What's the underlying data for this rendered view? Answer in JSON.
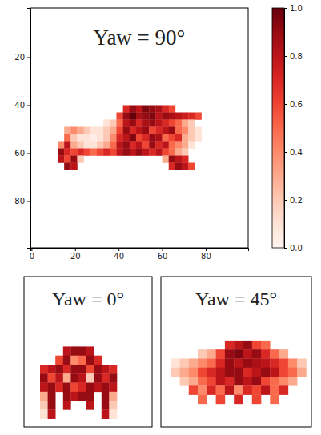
{
  "chart_data": [
    {
      "type": "heatmap",
      "title": "Yaw = 90°",
      "xlim": [
        -0.5,
        99.5
      ],
      "ylim": [
        99.5,
        -0.5
      ],
      "xticks": [
        0,
        20,
        40,
        60,
        80
      ],
      "yticks": [
        20,
        40,
        60,
        80
      ],
      "x_edges": [
        12,
        15,
        18,
        21,
        24,
        27,
        30,
        33,
        36,
        39,
        42,
        45,
        48,
        51,
        54,
        57,
        60,
        63,
        66,
        69,
        72,
        75,
        78,
        81
      ],
      "y_edges": [
        40,
        43,
        46,
        49,
        52,
        55,
        58,
        61,
        64,
        67
      ],
      "values": [
        [
          null,
          null,
          null,
          null,
          null,
          null,
          null,
          null,
          null,
          null,
          0.7,
          0.9,
          0.8,
          0.95,
          0.9,
          0.85,
          0.7,
          0.6,
          null,
          null,
          null,
          null,
          null
        ],
        [
          null,
          null,
          null,
          null,
          null,
          null,
          null,
          null,
          null,
          0.6,
          0.9,
          1.0,
          0.85,
          0.9,
          0.95,
          0.8,
          0.9,
          0.85,
          0.8,
          0.75,
          0.7,
          0.6,
          null
        ],
        [
          null,
          null,
          null,
          null,
          null,
          null,
          null,
          0.1,
          0.2,
          0.5,
          0.8,
          0.9,
          0.7,
          0.85,
          0.9,
          0.8,
          0.7,
          0.6,
          0.5,
          0.3,
          0.2,
          null,
          null
        ],
        [
          null,
          0.3,
          0.4,
          0.3,
          0.2,
          0.1,
          0.1,
          0.2,
          0.3,
          0.6,
          0.9,
          0.7,
          0.8,
          0.9,
          0.6,
          0.7,
          0.8,
          0.9,
          0.5,
          0.4,
          0.2,
          0.1,
          null
        ],
        [
          null,
          0.5,
          0.2,
          0.1,
          0.1,
          0.05,
          0.1,
          0.2,
          0.4,
          0.7,
          0.8,
          0.95,
          0.6,
          0.7,
          0.9,
          0.85,
          0.5,
          0.6,
          0.7,
          0.3,
          0.2,
          0.1,
          null
        ],
        [
          0.4,
          0.8,
          0.3,
          0.2,
          0.1,
          0.1,
          0.2,
          0.3,
          0.5,
          0.8,
          0.9,
          0.7,
          0.8,
          0.6,
          0.9,
          0.7,
          0.8,
          0.5,
          0.4,
          0.3,
          0.1,
          null,
          null
        ],
        [
          0.9,
          0.7,
          0.6,
          0.7,
          0.6,
          0.5,
          0.6,
          0.7,
          0.6,
          0.8,
          0.9,
          0.8,
          0.9,
          0.8,
          0.7,
          0.8,
          0.6,
          0.5,
          0.3,
          0.2,
          null,
          null,
          null
        ],
        [
          0.8,
          0.6,
          0.9,
          0.2,
          null,
          null,
          null,
          null,
          null,
          null,
          null,
          null,
          null,
          null,
          null,
          null,
          0.3,
          0.9,
          0.8,
          0.7,
          null,
          null,
          null
        ],
        [
          null,
          0.9,
          0.8,
          null,
          null,
          null,
          null,
          null,
          null,
          null,
          null,
          null,
          null,
          null,
          null,
          null,
          null,
          0.7,
          0.9,
          0.8,
          0.6,
          null,
          null
        ]
      ],
      "colorbar": {
        "range": [
          0,
          1
        ],
        "ticks": [
          {
            "value": 0,
            "label": "0.0"
          },
          {
            "value": 0.2,
            "label": "0.2"
          },
          {
            "value": 0.4,
            "label": "0.4"
          },
          {
            "value": 0.6,
            "label": "0.6"
          },
          {
            "value": 0.8,
            "label": "0.8"
          },
          {
            "value": 1,
            "label": "1.0"
          }
        ]
      }
    },
    {
      "type": "heatmap",
      "title": "Yaw = 0°",
      "tick_labels": false,
      "xlim": [
        -0.5,
        99.5
      ],
      "ylim": [
        99.5,
        -0.5
      ],
      "x_edges": [
        12,
        18,
        24,
        30,
        36,
        42,
        48,
        54,
        60,
        66,
        72
      ],
      "y_edges": [
        46,
        52,
        58,
        64,
        70,
        76,
        82,
        88,
        94
      ],
      "values": [
        [
          null,
          null,
          null,
          0.8,
          0.9,
          0.9,
          0.8,
          null,
          null,
          null
        ],
        [
          null,
          null,
          0.6,
          0.9,
          0.4,
          0.5,
          0.9,
          0.7,
          null,
          null
        ],
        [
          0.7,
          0.8,
          0.9,
          0.7,
          0.9,
          0.9,
          0.6,
          0.9,
          0.8,
          0.7
        ],
        [
          0.9,
          0.6,
          0.8,
          0.3,
          0.9,
          0.8,
          0.2,
          0.9,
          0.7,
          0.9
        ],
        [
          0.8,
          0.9,
          0.7,
          0.9,
          0.6,
          0.7,
          0.9,
          0.8,
          0.9,
          0.8
        ],
        [
          0.3,
          0.9,
          null,
          0.9,
          0.8,
          0.9,
          0.9,
          null,
          0.9,
          0.3
        ],
        [
          0.2,
          0.9,
          null,
          0.8,
          null,
          null,
          0.8,
          null,
          0.9,
          0.2
        ],
        [
          0.1,
          0.8,
          null,
          null,
          null,
          null,
          null,
          null,
          0.8,
          0.1
        ]
      ]
    },
    {
      "type": "heatmap",
      "title": "Yaw = 45°",
      "tick_labels": false,
      "xlim": [
        -0.5,
        99.5
      ],
      "ylim": [
        99.5,
        -0.5
      ],
      "x_edges": [
        6,
        12,
        18,
        24,
        30,
        36,
        42,
        48,
        54,
        60,
        66,
        72,
        78,
        84,
        90,
        96
      ],
      "y_edges": [
        42,
        48,
        54,
        60,
        66,
        72,
        78,
        84
      ],
      "values": [
        [
          null,
          null,
          null,
          null,
          null,
          null,
          0.7,
          0.8,
          0.9,
          0.6,
          0.5,
          null,
          null,
          null,
          null
        ],
        [
          null,
          null,
          null,
          0.2,
          0.3,
          0.6,
          0.9,
          0.95,
          0.8,
          0.9,
          0.7,
          0.5,
          0.3,
          null,
          null
        ],
        [
          0.1,
          0.2,
          0.3,
          0.4,
          0.5,
          0.7,
          0.9,
          0.8,
          0.9,
          0.85,
          0.8,
          0.7,
          0.6,
          0.4,
          0.2
        ],
        [
          0.2,
          0.3,
          0.4,
          0.6,
          0.7,
          0.8,
          0.9,
          0.9,
          0.7,
          0.8,
          0.9,
          0.8,
          0.6,
          0.5,
          0.3
        ],
        [
          null,
          0.2,
          0.3,
          0.5,
          0.6,
          0.8,
          0.7,
          0.9,
          0.8,
          0.9,
          0.6,
          0.5,
          0.4,
          0.3,
          null
        ],
        [
          null,
          null,
          0.6,
          0.4,
          0.7,
          0.5,
          0.8,
          0.4,
          0.7,
          0.6,
          0.8,
          0.5,
          0.7,
          null,
          null
        ],
        [
          null,
          null,
          null,
          0.5,
          null,
          0.6,
          null,
          0.7,
          null,
          0.6,
          null,
          0.5,
          null,
          null,
          null
        ]
      ]
    }
  ]
}
